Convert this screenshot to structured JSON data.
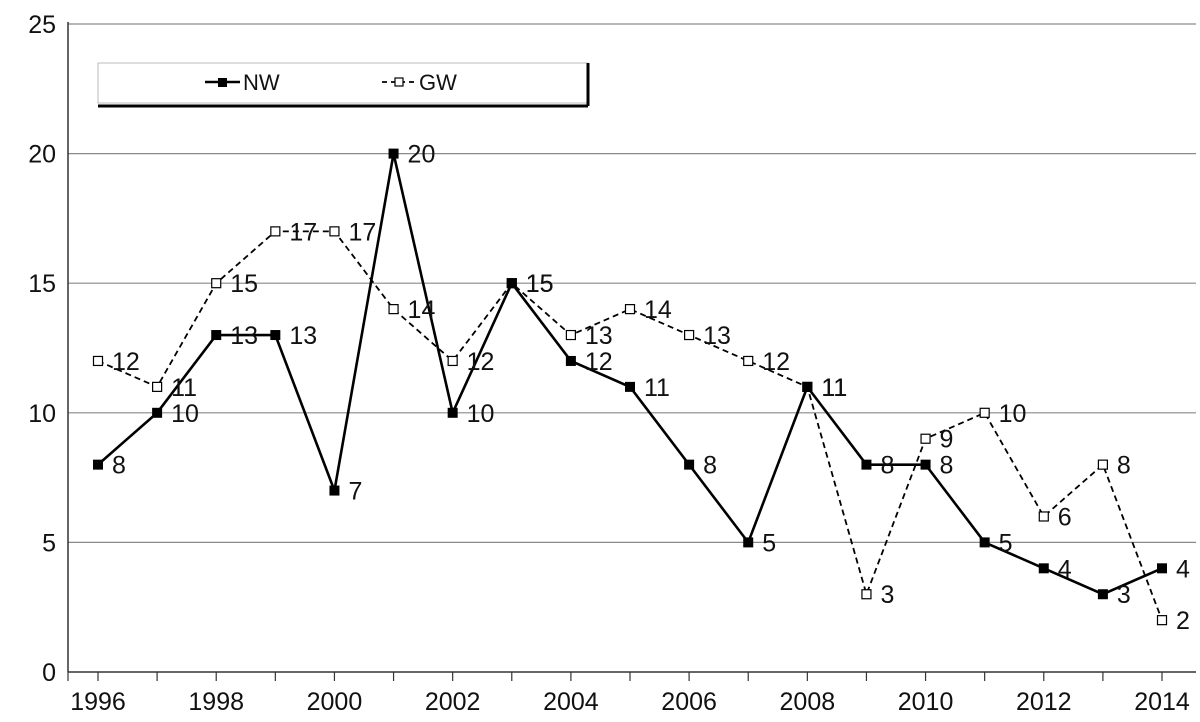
{
  "chart_data": {
    "type": "line",
    "title": "",
    "xlabel": "",
    "ylabel": "",
    "x": [
      1996,
      1997,
      1998,
      1999,
      2000,
      2001,
      2002,
      2003,
      2004,
      2005,
      2006,
      2007,
      2008,
      2009,
      2010,
      2011,
      2012,
      2013,
      2014
    ],
    "xticks": [
      "1996",
      "1998",
      "2000",
      "2002",
      "2004",
      "2006",
      "2008",
      "2010",
      "2012",
      "2014"
    ],
    "yticks": [
      "0",
      "5",
      "10",
      "15",
      "20",
      "25"
    ],
    "ylim": [
      0,
      25
    ],
    "grid": "horizontal",
    "legend": "top-left",
    "series": [
      {
        "name": "NW",
        "style": "solid",
        "marker": "filled-square",
        "color": "#000000",
        "values": [
          8,
          10,
          13,
          13,
          7,
          20,
          10,
          15,
          12,
          11,
          8,
          5,
          11,
          8,
          8,
          5,
          4,
          3,
          4
        ],
        "labels": [
          "8",
          "10",
          "13",
          "13",
          "7",
          "20",
          "10",
          "15",
          "12",
          "11",
          "8",
          "5",
          "11",
          "8",
          "8",
          "5",
          "4",
          "3",
          "4"
        ]
      },
      {
        "name": "GW",
        "style": "dashed",
        "marker": "open-square",
        "color": "#000000",
        "values": [
          12,
          11,
          15,
          17,
          17,
          14,
          12,
          15,
          13,
          14,
          13,
          12,
          11,
          3,
          9,
          10,
          6,
          8,
          2
        ],
        "labels": [
          "12",
          "11",
          "15",
          "17",
          "17",
          "14",
          "12",
          "15",
          "13",
          "14",
          "13",
          "12",
          "11",
          "3",
          "9",
          "10",
          "6",
          "8",
          "2"
        ]
      }
    ]
  }
}
